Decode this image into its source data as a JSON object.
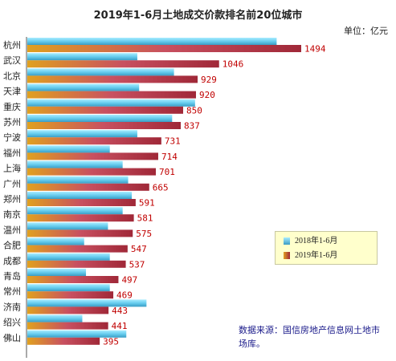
{
  "title": "2019年1-6月土地成交价款排名前20位城市",
  "unit": "单位：亿元",
  "source": "数据来源：国信房地产信息网土地市场库。",
  "colors": {
    "series_2018": "#66ccee",
    "series_2019": "#a0282a"
  },
  "chart_data": {
    "type": "bar",
    "orientation": "horizontal",
    "categories": [
      "杭州",
      "武汉",
      "北京",
      "天津",
      "重庆",
      "苏州",
      "宁波",
      "福州",
      "上海",
      "广州",
      "郑州",
      "南京",
      "温州",
      "合肥",
      "成都",
      "青岛",
      "常州",
      "济南",
      "绍兴",
      "佛山"
    ],
    "series": [
      {
        "name": "2018年1-6月",
        "values": [
          1360,
          600,
          800,
          610,
          915,
          790,
          600,
          450,
          520,
          550,
          570,
          520,
          440,
          310,
          450,
          320,
          450,
          650,
          300,
          540
        ]
      },
      {
        "name": "2019年1-6月",
        "values": [
          1494,
          1046,
          929,
          920,
          850,
          837,
          731,
          714,
          701,
          665,
          591,
          581,
          575,
          547,
          537,
          497,
          469,
          443,
          441,
          395
        ],
        "labels": [
          "1494",
          "1046",
          "929",
          "920",
          "850",
          "837",
          "731",
          "714",
          "701",
          "665",
          "591",
          "581",
          "575",
          "547",
          "537",
          "497",
          "469",
          "443",
          "441",
          "395"
        ]
      }
    ],
    "xlim": [
      0,
      1494
    ],
    "legend_position": "right",
    "grid": false
  }
}
